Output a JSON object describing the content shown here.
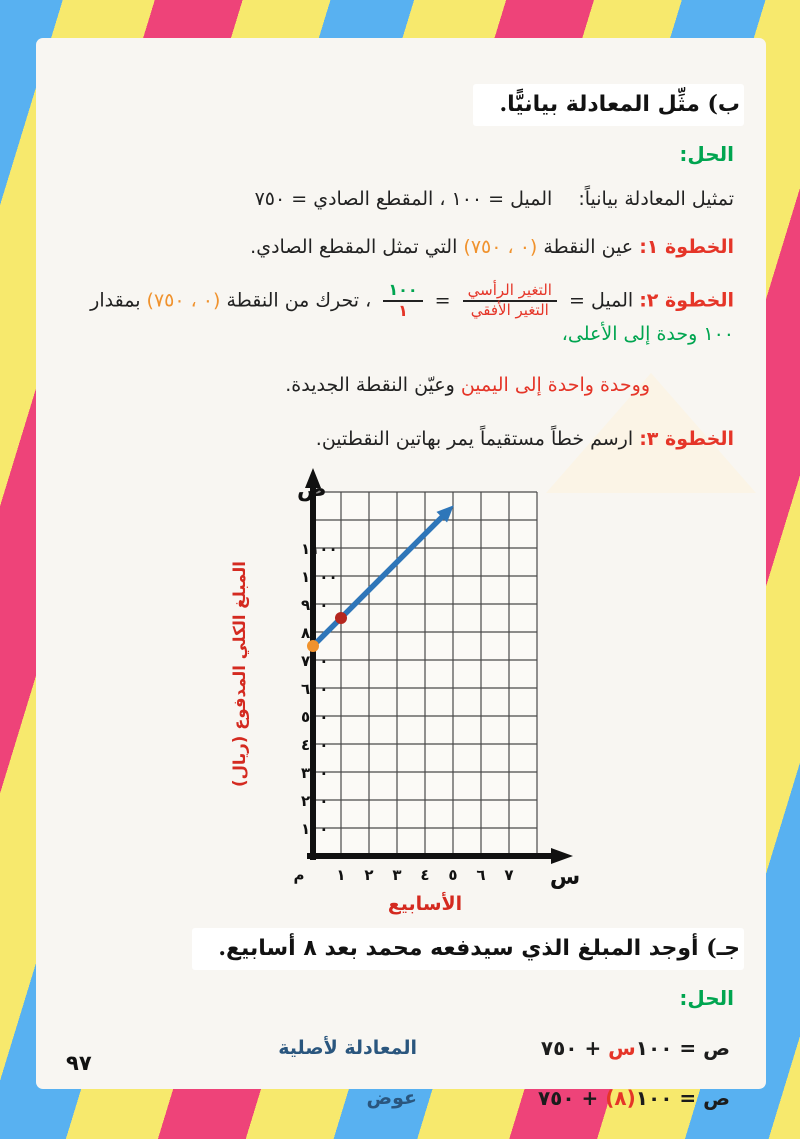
{
  "page": {
    "page_number": "٩٧",
    "colors": {
      "stripe_pink": "#ee4379",
      "stripe_yellow": "#f7e96d",
      "stripe_blue": "#58b1f1",
      "paper": "#f8f6f2",
      "solution_green": "#00a550",
      "step_red": "#e53528",
      "point_orange": "#f0922d",
      "note_blue": "#2a567e"
    }
  },
  "section_b": {
    "heading": "ب) مثِّل المعادلة بيانيًّا.",
    "solution_label": "الحل:",
    "intro_label": "تمثيل المعادلة بيانياً:",
    "intro_body": "الميل = ١٠٠ ، المقطع الصادي = ٧٥٠",
    "step1": {
      "label": "الخطوة ١:",
      "pre": "عين النقطة",
      "point": "(٠ ، ٧٥٠)",
      "post": "التي تمثل المقطع الصادي."
    },
    "step2": {
      "label": "الخطوة ٢:",
      "slope_word": "الميل =",
      "frac_words_num": "التغير الرأسي",
      "frac_words_den": "التغير الأفقي",
      "equals": "=",
      "frac_val_num": "١٠٠",
      "frac_val_den": "١",
      "move_text": "، تحرك من  النقطة",
      "point": "(٠ ، ٧٥٠)",
      "amount_word": "بمقدار",
      "up_text": "١٠٠ وحدة إلى الأعلى،",
      "line2_red": "ووحدة  واحدة  إلى اليمين",
      "line2_black": "وعيّن النقطة الجديدة."
    },
    "step3": {
      "label": "الخطوة ٣:",
      "text": "ارسم خطاً مستقيماً يمر بهاتين النقطتين."
    }
  },
  "chart_data": {
    "type": "line",
    "title": "",
    "xlabel": "الأسابيع",
    "ylabel": "المبلغ الكلي المدفوع (ريال)",
    "x_axis_letter": "س",
    "y_axis_letter": "ص",
    "origin_label": "م",
    "x_ticks": [
      "١",
      "٢",
      "٣",
      "٤",
      "٥",
      "٦",
      "٧"
    ],
    "y_ticks": [
      "١٠٠",
      "٢٠٠",
      "٣٠٠",
      "٤٠٠",
      "٥٠٠",
      "٦٠٠",
      "٧٠٠",
      "٨٠٠",
      "٩٠٠",
      "١٠٠٠",
      "١١٠٠"
    ],
    "y_tick_values": [
      100,
      200,
      300,
      400,
      500,
      600,
      700,
      800,
      900,
      1000,
      1100
    ],
    "xlim": [
      0,
      8
    ],
    "ylim": [
      0,
      1300
    ],
    "grid": true,
    "equation": "ص = ١٠٠س + ٧٥٠",
    "line": {
      "slope": 100,
      "intercept": 750,
      "x_start": 0,
      "x_end": 4.7,
      "color": "#2e76b9"
    },
    "points": [
      {
        "x": 0,
        "y": 750,
        "color": "#f0922d",
        "meaning": "y-intercept (0,750)"
      },
      {
        "x": 1,
        "y": 850,
        "color": "#b5271f",
        "meaning": "second point (1,850)"
      }
    ],
    "axis_color": "#111111",
    "grid_color": "#4a4a4a",
    "label_color": "#d42a20"
  },
  "section_c": {
    "heading": "جـ) أوجد المبلغ الذي سيدفعه محمد بعد ٨ أسابيع.",
    "solution_label": "الحل:",
    "eq1": {
      "pre": "ص = ١٠٠",
      "red": "س",
      "post": " + ٧٥٠",
      "note": "المعادلة لأصلية"
    },
    "eq2": {
      "pre": "ص = ١٠٠",
      "red": "(٨)",
      "post": " + ٧٥٠",
      "note": "عوض"
    }
  }
}
